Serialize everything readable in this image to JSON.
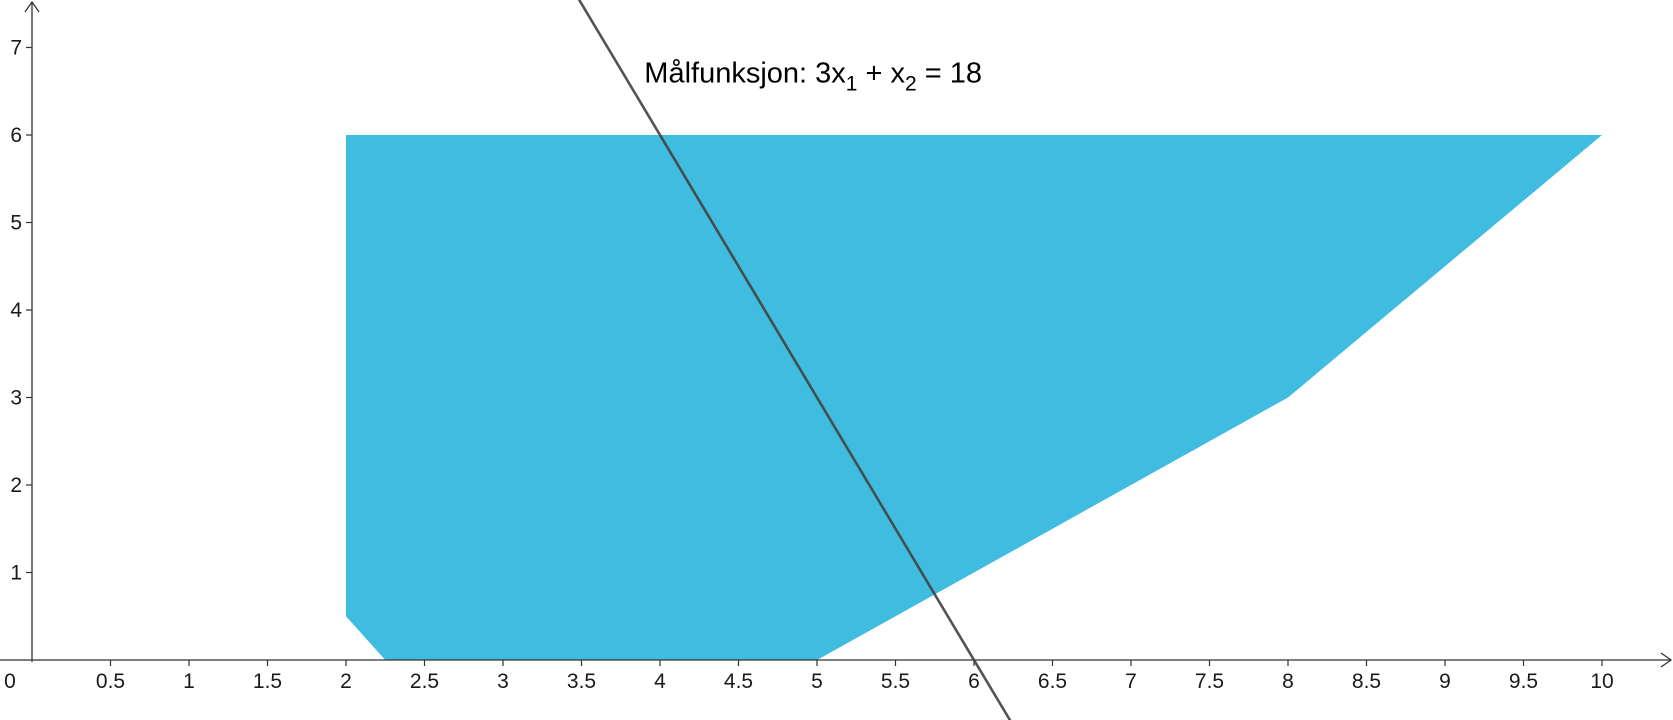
{
  "chart_data": {
    "type": "area",
    "title": "",
    "xlabel": "",
    "ylabel": "",
    "xlim": [
      0,
      10.7
    ],
    "ylim": [
      -0.7,
      7.5
    ],
    "grid": false,
    "x_ticks": [
      0.5,
      1,
      1.5,
      2,
      2.5,
      3,
      3.5,
      4,
      4.5,
      5,
      5.5,
      6,
      6.5,
      7,
      7.5,
      8,
      8.5,
      9,
      9.5,
      10
    ],
    "x_tick_labels": [
      "0.5",
      "1",
      "1.5",
      "2",
      "2.5",
      "3",
      "3.5",
      "4",
      "4.5",
      "5",
      "5.5",
      "6",
      "6.5",
      "7",
      "7.5",
      "8",
      "8.5",
      "9",
      "9.5",
      "10"
    ],
    "y_ticks": [
      1,
      2,
      3,
      4,
      5,
      6,
      7
    ],
    "y_tick_labels": [
      "1",
      "2",
      "3",
      "4",
      "5",
      "6",
      "7"
    ],
    "origin_label": "0",
    "feasible_region": {
      "color": "#3fbcdf",
      "vertices": [
        {
          "x": 2,
          "y": 6
        },
        {
          "x": 10,
          "y": 6
        },
        {
          "x": 8,
          "y": 3
        },
        {
          "x": 5,
          "y": 0
        },
        {
          "x": 2.25,
          "y": 0
        },
        {
          "x": 2,
          "y": 0.5
        }
      ]
    },
    "objective_line": {
      "equation": "3x1 + x2 = 18",
      "a": 3,
      "b": 1,
      "c": 18,
      "color": "#444444"
    },
    "annotation": {
      "prefix": "Målfunksjon: 3x",
      "sub1": "1",
      "mid": " + x",
      "sub2": "2",
      "suffix": " = 18",
      "x": 3.9,
      "y": 6.6
    }
  }
}
